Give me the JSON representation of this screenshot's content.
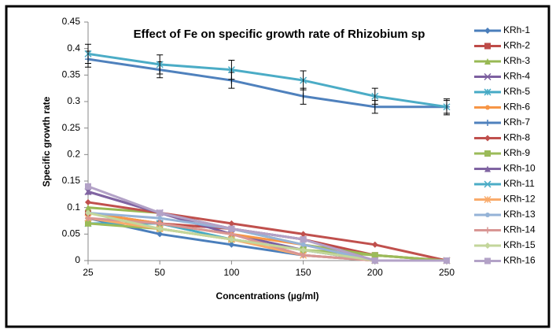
{
  "chart_data": {
    "type": "line",
    "title": "Effect of Fe on specific growth rate of Rhizobium sp",
    "x_label": "Concentrations (µg/ml)",
    "y_label": "Specific growth rate",
    "categories": [
      "25",
      "50",
      "100",
      "150",
      "200",
      "250"
    ],
    "ylim": [
      0,
      0.45
    ],
    "yticks": [
      0,
      0.05,
      0.1,
      0.15,
      0.2,
      0.25,
      0.3,
      0.35,
      0.4,
      0.45
    ],
    "legend": "right",
    "series": [
      {
        "name": "KRh-1",
        "color": "#4a7ebb",
        "values": [
          0.08,
          0.05,
          0.03,
          0.01,
          0,
          0
        ]
      },
      {
        "name": "KRh-2",
        "color": "#be4b48",
        "values": [
          0.09,
          0.07,
          0.06,
          0.04,
          0.01,
          0
        ]
      },
      {
        "name": "KRh-3",
        "color": "#98b954",
        "values": [
          0.1,
          0.09,
          0.06,
          0.03,
          0.01,
          0
        ]
      },
      {
        "name": "KRh-4",
        "color": "#7d60a0",
        "values": [
          0.13,
          0.09,
          0.05,
          0.02,
          0,
          0
        ]
      },
      {
        "name": "KRh-5",
        "color": "#46aac5",
        "values": [
          0.07,
          0.07,
          0.04,
          0.02,
          0,
          0
        ]
      },
      {
        "name": "KRh-6",
        "color": "#f79646",
        "values": [
          0.09,
          0.07,
          0.05,
          0.03,
          0,
          0
        ]
      },
      {
        "name": "KRh-7",
        "color": "#4f81bd",
        "values": [
          0.38,
          0.36,
          0.34,
          0.31,
          0.29,
          0.29
        ],
        "errors": [
          0.015,
          0.015,
          0.015,
          0.015,
          0.012,
          0.012
        ]
      },
      {
        "name": "KRh-8",
        "color": "#c0504d",
        "values": [
          0.11,
          0.09,
          0.07,
          0.05,
          0.03,
          0
        ]
      },
      {
        "name": "KRh-9",
        "color": "#9bbb59",
        "values": [
          0.07,
          0.06,
          0.04,
          0.02,
          0.01,
          0
        ]
      },
      {
        "name": "KRh-10",
        "color": "#8064a2",
        "values": [
          0.13,
          0.09,
          0.06,
          0.04,
          0,
          0
        ]
      },
      {
        "name": "KRh-11",
        "color": "#4bacc6",
        "values": [
          0.39,
          0.37,
          0.36,
          0.34,
          0.31,
          0.29
        ],
        "errors": [
          0.018,
          0.018,
          0.018,
          0.018,
          0.015,
          0.015
        ]
      },
      {
        "name": "KRh-12",
        "color": "#f9ab6b",
        "values": [
          0.08,
          0.06,
          0.04,
          0.01,
          0,
          0
        ]
      },
      {
        "name": "KRh-13",
        "color": "#95b3d7",
        "values": [
          0.09,
          0.08,
          0.06,
          0.03,
          0,
          0
        ]
      },
      {
        "name": "KRh-14",
        "color": "#d99694",
        "values": [
          0.08,
          0.07,
          0.05,
          0.01,
          0,
          0
        ]
      },
      {
        "name": "KRh-15",
        "color": "#c3d69b",
        "values": [
          0.09,
          0.06,
          0.04,
          0.02,
          0,
          0
        ]
      },
      {
        "name": "KRh-16",
        "color": "#b3a2c7",
        "values": [
          0.14,
          0.09,
          0.06,
          0.04,
          0,
          0
        ]
      }
    ]
  }
}
